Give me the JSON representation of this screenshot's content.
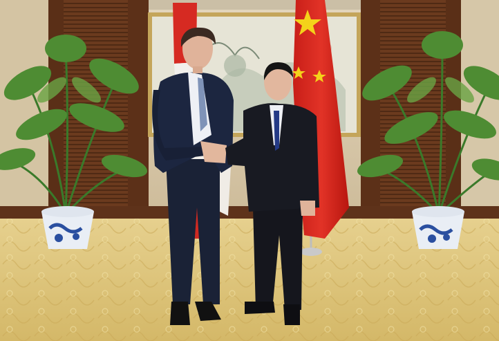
{
  "scene": {
    "colors": {
      "wall": "#d8c8aa",
      "wood_panel": "#6e3a1f",
      "carpet": "#dcc37a",
      "flag_red": "#d8261f",
      "flag_star": "#f4d21a",
      "suit_navy": "#1c2640",
      "suit_black": "#181a22",
      "plant_green": "#3f7a2e",
      "pot_white": "#e9eef5",
      "pot_blue": "#2a4fa0"
    }
  }
}
